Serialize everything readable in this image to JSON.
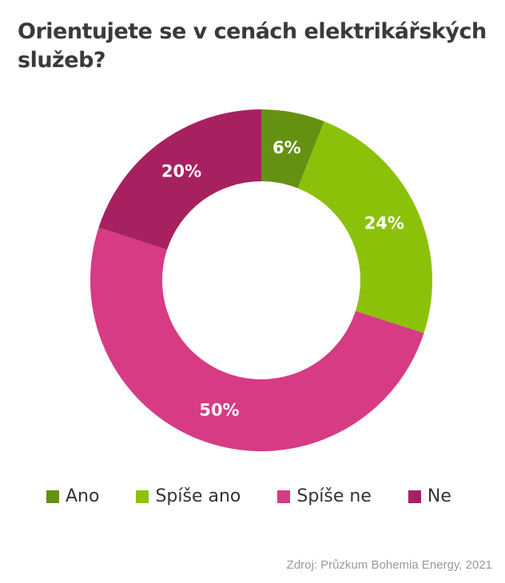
{
  "chart_data": {
    "type": "pie",
    "variant": "donut",
    "title": "Orientujete se v cenách elektrikářských služeb?",
    "categories": [
      "Ano",
      "Spíše ano",
      "Spíše ne",
      "Ne"
    ],
    "values": [
      6,
      24,
      50,
      20
    ],
    "labels": [
      "6%",
      "24%",
      "50%",
      "20%"
    ],
    "colors": [
      "#659112",
      "#8cc10a",
      "#d63b84",
      "#a72160"
    ],
    "legend_position": "bottom",
    "source": "Zdroj: Průzkum Bohemia Energy, 2021"
  }
}
